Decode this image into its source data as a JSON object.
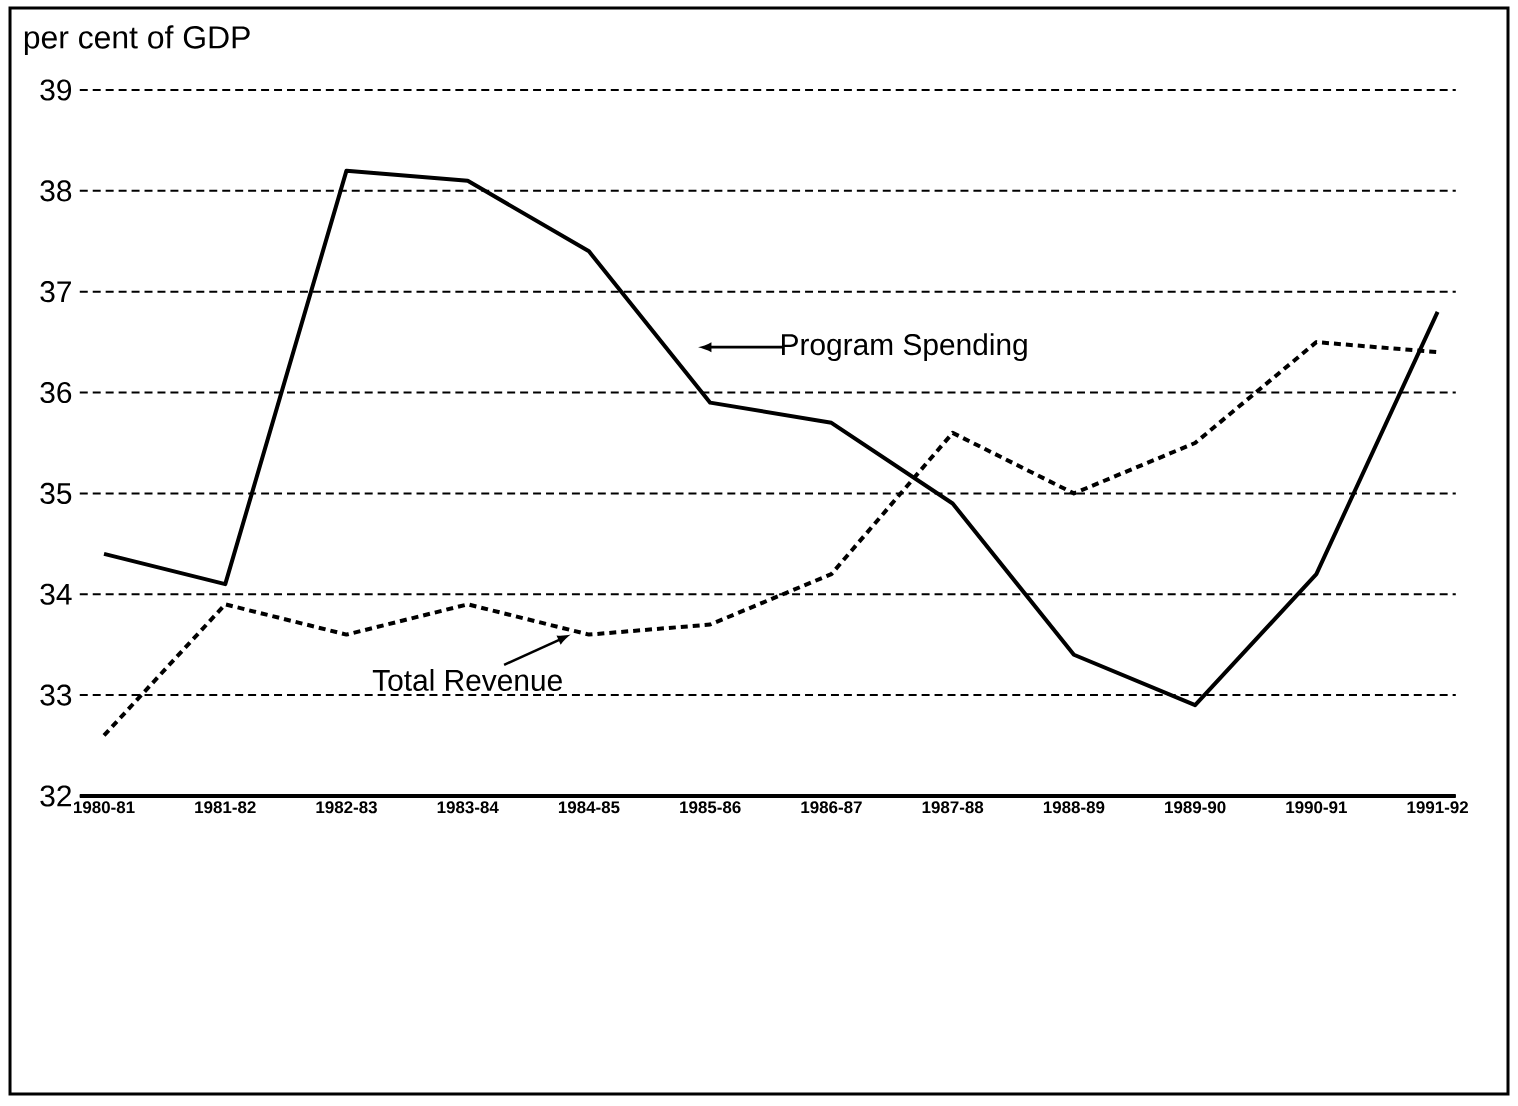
{
  "chart_data": {
    "type": "line",
    "ylabel": "per cent of GDP",
    "categories": [
      "1980-81",
      "1981-82",
      "1982-83",
      "1983-84",
      "1984-85",
      "1985-86",
      "1986-87",
      "1987-88",
      "1988-89",
      "1989-90",
      "1990-91",
      "1991-92"
    ],
    "series": [
      {
        "name": "Program Spending",
        "color": "#000000",
        "line_style": "solid",
        "values": [
          34.4,
          34.1,
          38.2,
          38.1,
          37.4,
          35.9,
          35.7,
          34.9,
          33.4,
          32.9,
          34.2,
          36.8
        ]
      },
      {
        "name": "Total Revenue",
        "color": "#000000",
        "line_style": "dashed",
        "values": [
          32.6,
          33.9,
          33.6,
          33.9,
          33.6,
          33.7,
          34.2,
          35.6,
          35.0,
          35.5,
          36.5,
          36.4
        ]
      }
    ],
    "ylim": [
      32,
      39
    ],
    "yticks": [
      32,
      33,
      34,
      35,
      36,
      37,
      38,
      39
    ],
    "grid": "y",
    "marker": "none"
  }
}
